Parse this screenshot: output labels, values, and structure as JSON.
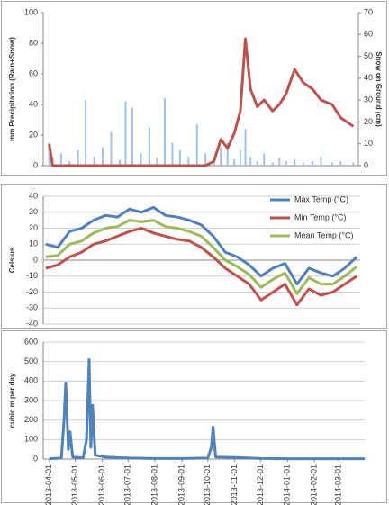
{
  "chart_data": [
    {
      "type": "bar",
      "xlim": [
        "2013-03-25",
        "2014-03-31"
      ],
      "x": [
        "2013-04-01",
        "2013-04-05",
        "2013-04-15",
        "2013-04-25",
        "2013-05-05",
        "2013-05-14",
        "2013-05-24",
        "2013-06-03",
        "2013-06-13",
        "2013-06-23",
        "2013-06-30",
        "2013-07-08",
        "2013-07-18",
        "2013-07-28",
        "2013-08-06",
        "2013-08-15",
        "2013-08-24",
        "2013-09-02",
        "2013-09-12",
        "2013-09-22",
        "2013-10-02",
        "2013-10-12",
        "2013-10-20",
        "2013-10-28",
        "2013-11-05",
        "2013-11-12",
        "2013-11-18",
        "2013-11-24",
        "2013-12-02",
        "2013-12-10",
        "2013-12-20",
        "2013-12-28",
        "2014-01-05",
        "2014-01-15",
        "2014-01-25",
        "2014-02-05",
        "2014-02-15",
        "2014-02-28",
        "2014-03-10",
        "2014-03-25"
      ],
      "ylabel": "mm Precipitation (Rain+Snow)",
      "y2label": "Snow on Ground (cm)",
      "ylim": [
        0,
        100
      ],
      "yticks": [
        0,
        20,
        40,
        60,
        80,
        100
      ],
      "y2lim": [
        0,
        70
      ],
      "y2ticks": [
        0,
        10,
        20,
        30,
        40,
        50,
        60,
        70
      ],
      "grid": false,
      "series": [
        {
          "type": "bar",
          "color": "#9dc3e6",
          "values": [
            15,
            5,
            8,
            3,
            10,
            43,
            6,
            12,
            22,
            4,
            42,
            38,
            8,
            25,
            5,
            44,
            15,
            10,
            6,
            27,
            8,
            5,
            12,
            15,
            4,
            10,
            24,
            6,
            3,
            8,
            2,
            5,
            3,
            4,
            2,
            3,
            6,
            2,
            3,
            2
          ]
        },
        {
          "type": "line",
          "axis": "y2",
          "color": "#c0504d",
          "values": [
            10,
            0,
            0,
            0,
            0,
            0,
            0,
            0,
            0,
            0,
            0,
            0,
            0,
            0,
            0,
            0,
            0,
            0,
            0,
            0,
            0,
            2,
            12,
            8,
            15,
            25,
            58,
            35,
            27,
            30,
            25,
            28,
            33,
            44,
            38,
            35,
            30,
            28,
            22,
            18
          ]
        }
      ]
    },
    {
      "type": "line",
      "xlim": [
        "2013-03-25",
        "2014-03-31"
      ],
      "x": [
        "2013-03-28",
        "2013-04-11",
        "2013-04-25",
        "2013-05-09",
        "2013-05-23",
        "2013-06-06",
        "2013-06-20",
        "2013-07-04",
        "2013-07-18",
        "2013-08-01",
        "2013-08-15",
        "2013-08-29",
        "2013-09-12",
        "2013-09-26",
        "2013-10-10",
        "2013-10-24",
        "2013-11-07",
        "2013-11-21",
        "2013-12-05",
        "2013-12-19",
        "2014-01-02",
        "2014-01-16",
        "2014-01-30",
        "2014-02-13",
        "2014-02-27",
        "2014-03-13",
        "2014-03-27"
      ],
      "ylabel": "Celsius",
      "ylim": [
        -40,
        40
      ],
      "yticks": [
        40,
        30,
        20,
        10,
        0,
        -10,
        -20,
        -30,
        -40
      ],
      "grid": true,
      "legend": "right",
      "series": [
        {
          "name": "Max Temp (°C)",
          "color": "#4f81bd",
          "values": [
            10,
            8,
            18,
            20,
            25,
            28,
            27,
            32,
            30,
            33,
            28,
            27,
            25,
            22,
            15,
            5,
            2,
            -3,
            -10,
            -5,
            -2,
            -15,
            -5,
            -8,
            -10,
            -5,
            2
          ]
        },
        {
          "name": "Min Temp (°C)",
          "color": "#c0504d",
          "values": [
            -5,
            -3,
            2,
            5,
            10,
            12,
            15,
            18,
            20,
            17,
            15,
            13,
            12,
            8,
            2,
            -5,
            -10,
            -15,
            -25,
            -20,
            -15,
            -28,
            -18,
            -22,
            -20,
            -15,
            -10
          ]
        },
        {
          "name": "Mean Temp (°C)",
          "color": "#9bbb59",
          "values": [
            2,
            3,
            10,
            12,
            17,
            20,
            21,
            25,
            24,
            25,
            21,
            20,
            18,
            15,
            8,
            0,
            -4,
            -9,
            -17,
            -12,
            -8,
            -21,
            -11,
            -15,
            -15,
            -10,
            -4
          ]
        }
      ]
    },
    {
      "type": "line",
      "xlim": [
        "2013-03-25",
        "2014-03-31"
      ],
      "x": [
        "2013-04-01",
        "2013-04-15",
        "2013-04-18",
        "2013-04-20",
        "2013-04-23",
        "2013-04-25",
        "2013-04-28",
        "2013-05-10",
        "2013-05-14",
        "2013-05-17",
        "2013-05-19",
        "2013-05-21",
        "2013-05-24",
        "2013-06-05",
        "2013-07-01",
        "2013-08-01",
        "2013-09-01",
        "2013-10-01",
        "2013-10-05",
        "2013-10-07",
        "2013-10-10",
        "2013-11-01",
        "2013-12-01",
        "2014-01-01",
        "2014-02-01",
        "2014-03-01",
        "2014-03-31"
      ],
      "ylabel": "cubic m per day",
      "ylim": [
        0,
        600
      ],
      "yticks": [
        0,
        100,
        200,
        300,
        400,
        500,
        600
      ],
      "grid": true,
      "xticks": [
        "2013-04-01",
        "2013-05-01",
        "2013-06-01",
        "2013-07-01",
        "2013-08-01",
        "2013-09-01",
        "2013-10-01",
        "2013-11-01",
        "2013-12-01",
        "2014-01-01",
        "2014-02-01",
        "2014-03-01"
      ],
      "series": [
        {
          "color": "#4f81bd",
          "values": [
            2,
            5,
            200,
            390,
            50,
            140,
            10,
            5,
            100,
            510,
            60,
            275,
            20,
            10,
            5,
            3,
            3,
            5,
            60,
            165,
            10,
            8,
            3,
            2,
            2,
            2,
            2
          ]
        }
      ]
    }
  ]
}
